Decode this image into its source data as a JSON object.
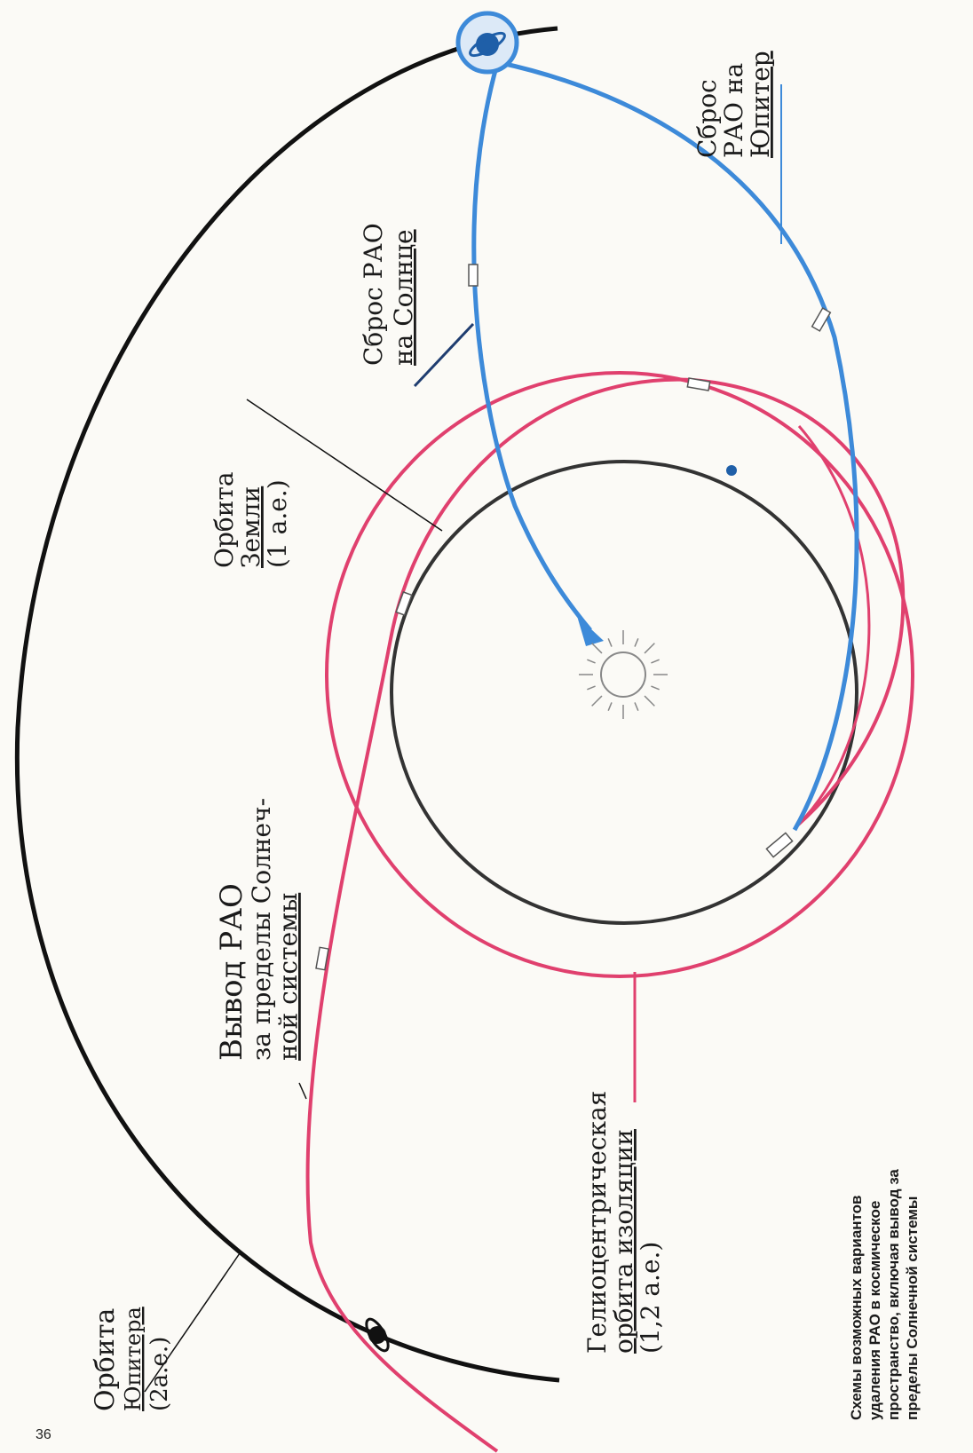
{
  "labels": {
    "jupiter_orbit": [
      "Орбита",
      "Юпитера",
      "(2а.е.)"
    ],
    "earth_orbit": [
      "Орбита",
      "Земли",
      "(1 а.е.)"
    ],
    "sun_drop": [
      "Сброс РАО",
      "на Солнце"
    ],
    "jupiter_drop": [
      "Сброс",
      "РАО на",
      "Юпитер"
    ],
    "escape": [
      "Вывод  РАО",
      "за пределы Солнеч-",
      "ной системы"
    ],
    "helio_orbit": [
      "Гелиоцентрическая",
      "орбита изоляции",
      "(1,2 а.е.)"
    ]
  },
  "caption": [
    "Схемы  возможных  вариантов",
    "удаления  РАО  в  космическое",
    "пространство, включая вывод за",
    "пределы Солнечной системы"
  ],
  "page_number": "36",
  "colors": {
    "jupiter_orbit": "#111111",
    "earth_orbit": "#333333",
    "helio_orbit": "#e0406e",
    "transfer": "#3d8ad9",
    "planet": "#1f5fa8",
    "sun": "#888888"
  }
}
